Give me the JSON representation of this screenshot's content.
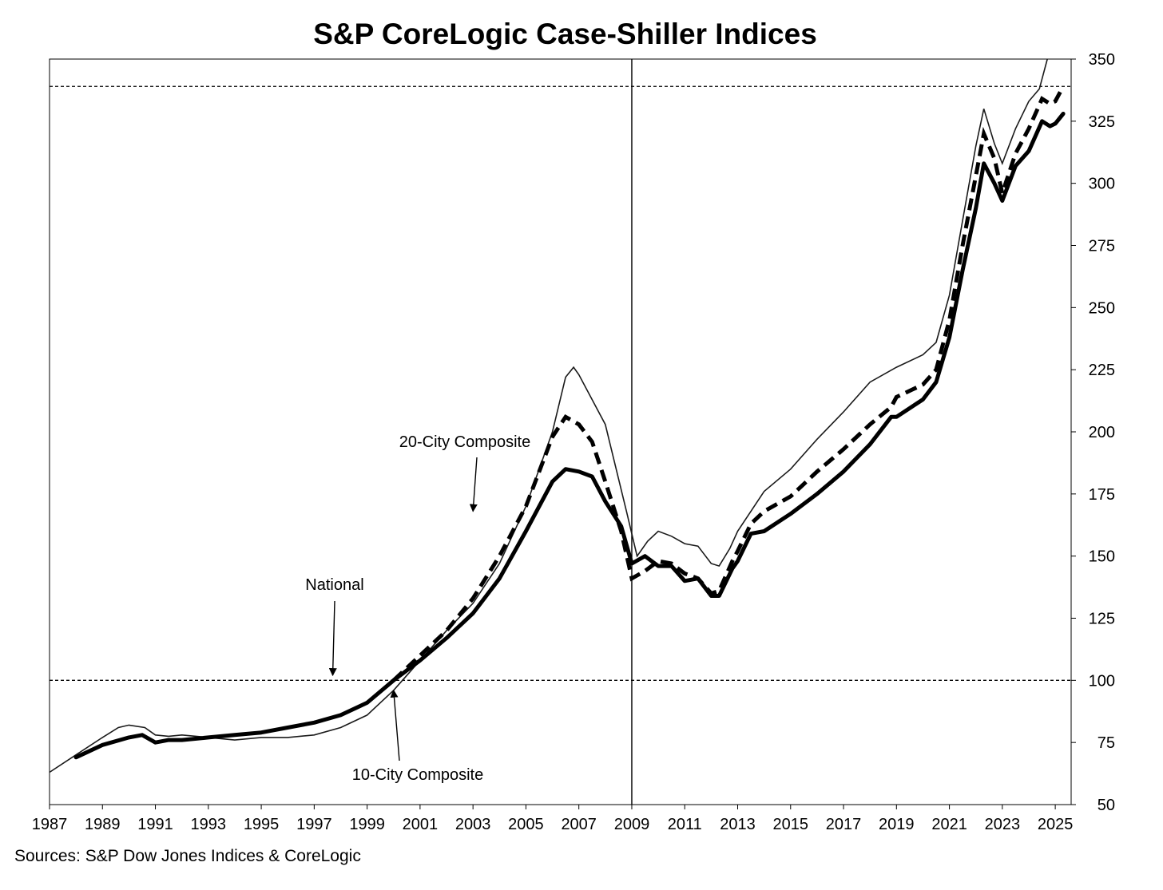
{
  "chart_data": {
    "type": "line",
    "title": "S&P CoreLogic Case-Shiller Indices",
    "source": "Sources:  S&P Dow Jones Indices & CoreLogic",
    "xlabel": "",
    "ylabel": "",
    "xlim": [
      1987,
      2025.6
    ],
    "ylim": [
      50,
      350
    ],
    "x_ticks": [
      "1987",
      "1989",
      "1991",
      "1993",
      "1995",
      "1997",
      "1999",
      "2001",
      "2003",
      "2005",
      "2007",
      "2009",
      "2011",
      "2013",
      "2015",
      "2017",
      "2019",
      "2021",
      "2023",
      "2025"
    ],
    "y_ticks": [
      "50",
      "75",
      "100",
      "125",
      "150",
      "175",
      "200",
      "225",
      "250",
      "275",
      "300",
      "325",
      "350"
    ],
    "y_axis_side": "right",
    "grid": false,
    "reference_lines": {
      "horizontal": [
        100,
        339
      ],
      "vertical": [
        2009
      ]
    },
    "annotations": [
      {
        "label": "20-City Composite",
        "target": [
          2003.0,
          168
        ]
      },
      {
        "label": "National",
        "target": [
          1997.7,
          102
        ]
      },
      {
        "label": "10-City Composite",
        "target": [
          2000.0,
          96
        ]
      }
    ],
    "series": [
      {
        "name": "National",
        "style": "thin",
        "points": [
          [
            1987,
            63
          ],
          [
            1988,
            70
          ],
          [
            1989,
            77
          ],
          [
            1989.6,
            81
          ],
          [
            1990,
            82
          ],
          [
            1990.6,
            81
          ],
          [
            1991,
            78
          ],
          [
            1991.5,
            77.5
          ],
          [
            1992,
            78
          ],
          [
            1993,
            77
          ],
          [
            1994,
            76
          ],
          [
            1995,
            77
          ],
          [
            1996,
            77
          ],
          [
            1997,
            78
          ],
          [
            1998,
            81
          ],
          [
            1999,
            86
          ],
          [
            2000,
            96
          ],
          [
            2001,
            108
          ],
          [
            2002,
            120
          ],
          [
            2003,
            131
          ],
          [
            2004,
            147
          ],
          [
            2005,
            170
          ],
          [
            2006,
            200
          ],
          [
            2006.5,
            222
          ],
          [
            2006.8,
            226
          ],
          [
            2007,
            223
          ],
          [
            2008,
            203
          ],
          [
            2008.8,
            168
          ],
          [
            2009.2,
            150
          ],
          [
            2009.6,
            156
          ],
          [
            2010,
            160
          ],
          [
            2010.5,
            158
          ],
          [
            2011,
            155
          ],
          [
            2011.5,
            154
          ],
          [
            2012,
            147
          ],
          [
            2012.3,
            146
          ],
          [
            2012.7,
            153
          ],
          [
            2013,
            160
          ],
          [
            2014,
            176
          ],
          [
            2015,
            185
          ],
          [
            2016,
            197
          ],
          [
            2017,
            208
          ],
          [
            2018,
            220
          ],
          [
            2019,
            226
          ],
          [
            2020,
            231
          ],
          [
            2020.5,
            236
          ],
          [
            2021,
            255
          ],
          [
            2021.5,
            285
          ],
          [
            2022,
            315
          ],
          [
            2022.3,
            330
          ],
          [
            2022.7,
            316
          ],
          [
            2023,
            308
          ],
          [
            2023.5,
            322
          ],
          [
            2024,
            333
          ],
          [
            2024.4,
            338
          ],
          [
            2024.7,
            350
          ]
        ]
      },
      {
        "name": "20-City Composite",
        "style": "dashed",
        "points": [
          [
            2000,
            100
          ],
          [
            2001,
            110
          ],
          [
            2002,
            120
          ],
          [
            2003,
            133
          ],
          [
            2004,
            150
          ],
          [
            2005,
            170
          ],
          [
            2006,
            198
          ],
          [
            2006.5,
            206
          ],
          [
            2007,
            203
          ],
          [
            2007.5,
            196
          ],
          [
            2008,
            180
          ],
          [
            2008.6,
            160
          ],
          [
            2009,
            141
          ],
          [
            2009.5,
            144
          ],
          [
            2010,
            148
          ],
          [
            2010.5,
            147
          ],
          [
            2011,
            143
          ],
          [
            2011.5,
            141
          ],
          [
            2012,
            135
          ],
          [
            2012.3,
            136
          ],
          [
            2012.8,
            148
          ],
          [
            2013,
            152
          ],
          [
            2013.5,
            163
          ],
          [
            2014,
            168
          ],
          [
            2015,
            174
          ],
          [
            2016,
            184
          ],
          [
            2017,
            193
          ],
          [
            2018,
            203
          ],
          [
            2018.8,
            210
          ],
          [
            2019,
            214
          ],
          [
            2020,
            219
          ],
          [
            2020.5,
            225
          ],
          [
            2021,
            245
          ],
          [
            2021.5,
            275
          ],
          [
            2022,
            303
          ],
          [
            2022.3,
            320
          ],
          [
            2022.7,
            310
          ],
          [
            2023,
            296
          ],
          [
            2023.5,
            312
          ],
          [
            2024,
            322
          ],
          [
            2024.5,
            334
          ],
          [
            2024.8,
            332
          ],
          [
            2025,
            333
          ],
          [
            2025.3,
            339
          ]
        ]
      },
      {
        "name": "10-City Composite",
        "style": "thick",
        "points": [
          [
            1988,
            69
          ],
          [
            1989,
            74
          ],
          [
            1990,
            77
          ],
          [
            1990.5,
            78
          ],
          [
            1991,
            75
          ],
          [
            1991.5,
            76
          ],
          [
            1992,
            76
          ],
          [
            1993,
            77
          ],
          [
            1994,
            78
          ],
          [
            1995,
            79
          ],
          [
            1996,
            81
          ],
          [
            1997,
            83
          ],
          [
            1998,
            86
          ],
          [
            1999,
            91
          ],
          [
            2000,
            100
          ],
          [
            2001,
            108
          ],
          [
            2002,
            117
          ],
          [
            2003,
            127
          ],
          [
            2004,
            141
          ],
          [
            2005,
            160
          ],
          [
            2006,
            180
          ],
          [
            2006.5,
            185
          ],
          [
            2007,
            184
          ],
          [
            2007.5,
            182
          ],
          [
            2008,
            172
          ],
          [
            2008.6,
            162
          ],
          [
            2009,
            147
          ],
          [
            2009.5,
            150
          ],
          [
            2010,
            146
          ],
          [
            2010.5,
            146
          ],
          [
            2011,
            140
          ],
          [
            2011.5,
            141
          ],
          [
            2012,
            134
          ],
          [
            2012.3,
            134
          ],
          [
            2012.8,
            145
          ],
          [
            2013,
            148
          ],
          [
            2013.5,
            159
          ],
          [
            2014,
            160
          ],
          [
            2015,
            167
          ],
          [
            2016,
            175
          ],
          [
            2017,
            184
          ],
          [
            2018,
            195
          ],
          [
            2018.8,
            206
          ],
          [
            2019,
            206
          ],
          [
            2020,
            213
          ],
          [
            2020.5,
            220
          ],
          [
            2021,
            238
          ],
          [
            2021.5,
            265
          ],
          [
            2022,
            290
          ],
          [
            2022.3,
            308
          ],
          [
            2022.7,
            300
          ],
          [
            2023,
            293
          ],
          [
            2023.5,
            307
          ],
          [
            2024,
            313
          ],
          [
            2024.5,
            325
          ],
          [
            2024.8,
            323
          ],
          [
            2025,
            324
          ],
          [
            2025.3,
            328
          ]
        ]
      }
    ]
  }
}
